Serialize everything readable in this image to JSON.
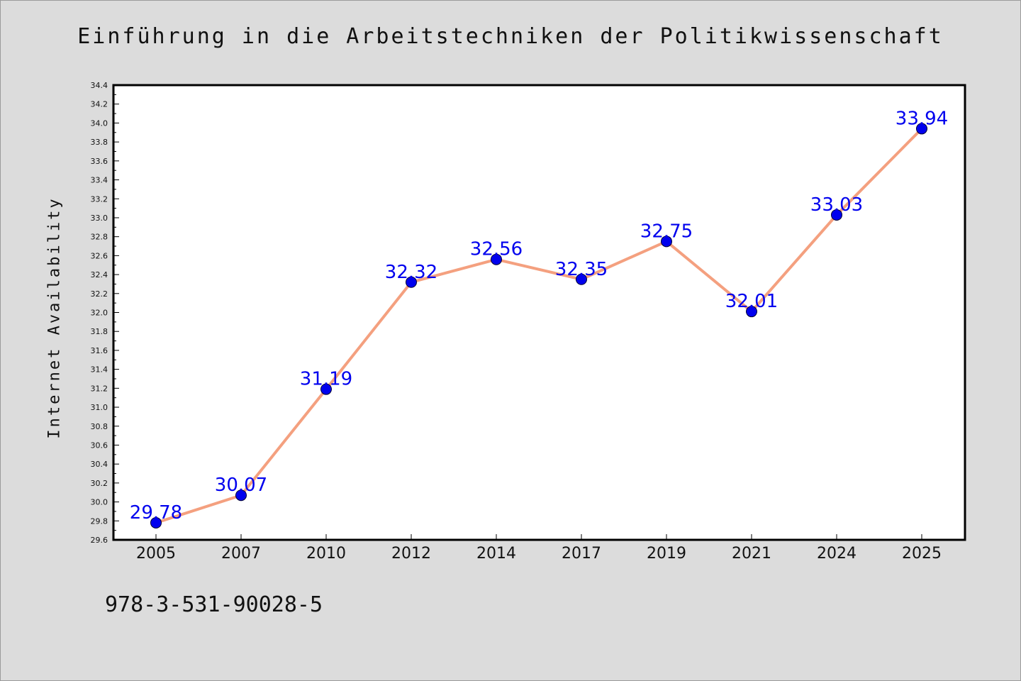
{
  "chart_data": {
    "type": "line",
    "title": "Einführung in die Arbeitstechniken der Politikwissenschaft",
    "xlabel": "",
    "ylabel": "Internet Availability",
    "categories": [
      "2005",
      "2007",
      "2010",
      "2012",
      "2014",
      "2017",
      "2019",
      "2021",
      "2024",
      "2025"
    ],
    "values": [
      29.78,
      30.07,
      31.19,
      32.32,
      32.56,
      32.35,
      32.75,
      32.01,
      33.03,
      33.94
    ],
    "data_labels": [
      "29.78",
      "30.07",
      "31.19",
      "32.32",
      "32.56",
      "32.35",
      "32.75",
      "32.01",
      "33.03",
      "33.94"
    ],
    "ylim": [
      29.6,
      34.4
    ],
    "yticks": [
      "29.6",
      "29.8",
      "30.0",
      "30.2",
      "30.4",
      "30.6",
      "30.8",
      "31.0",
      "31.2",
      "31.4",
      "31.6",
      "31.8",
      "32.0",
      "32.2",
      "32.4",
      "32.6",
      "32.8",
      "33.0",
      "33.2",
      "33.4",
      "33.6",
      "33.8",
      "34.0",
      "34.2",
      "34.4"
    ],
    "grid": false,
    "line_color": "#f4a07f",
    "marker_color": "#0000ee",
    "label_color": "#0000ee"
  },
  "footer": {
    "isbn": "978-3-531-90028-5"
  }
}
